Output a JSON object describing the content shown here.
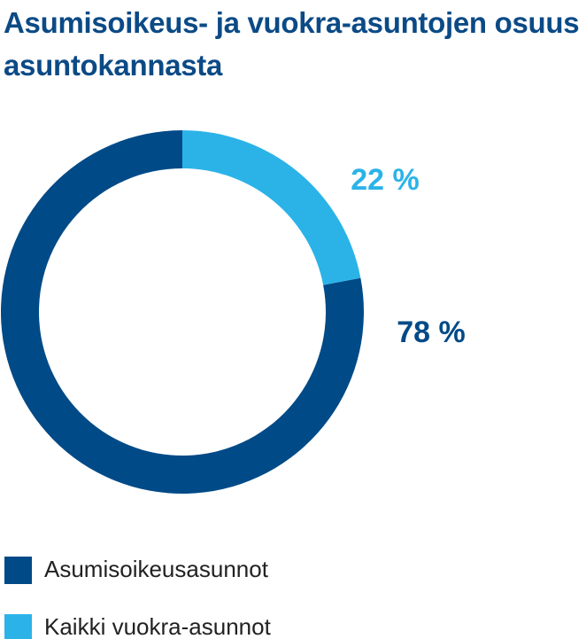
{
  "chart_data": {
    "type": "donut",
    "title": "Asumisoikeus- ja vuokra-asuntojen osuus asuntokannasta",
    "categories": [
      "Asumisoikeusasunnot",
      "Kaikki vuokra-asunnot"
    ],
    "values": [
      78,
      22
    ],
    "value_labels": [
      "78 %",
      "22 %"
    ],
    "colors": [
      "#004a87",
      "#2bb3e8"
    ]
  }
}
